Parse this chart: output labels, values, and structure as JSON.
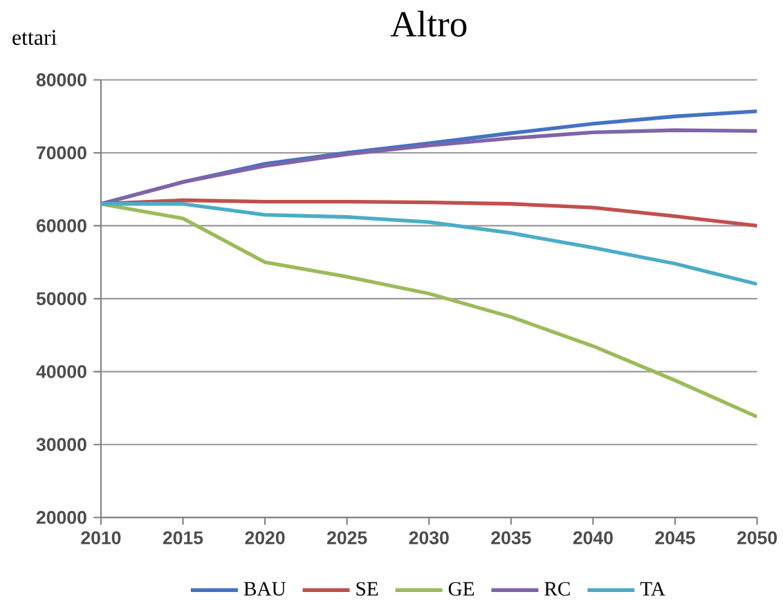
{
  "chart_data": {
    "type": "line",
    "title": "Altro",
    "ylabel": "ettari",
    "x": [
      2010,
      2015,
      2020,
      2025,
      2030,
      2035,
      2040,
      2045,
      2050
    ],
    "series": [
      {
        "name": "BAU",
        "color": "#4472c4",
        "values": [
          63000,
          66000,
          68500,
          70000,
          71300,
          72700,
          74000,
          75000,
          75700
        ]
      },
      {
        "name": "SE",
        "color": "#c0504d",
        "values": [
          63000,
          63500,
          63300,
          63300,
          63200,
          63000,
          62500,
          61300,
          60000
        ]
      },
      {
        "name": "GE",
        "color": "#9bbb59",
        "values": [
          63000,
          61000,
          55000,
          53000,
          50700,
          47500,
          43500,
          38800,
          33800
        ]
      },
      {
        "name": "RC",
        "color": "#7f64a8",
        "values": [
          63000,
          66000,
          68200,
          69800,
          71000,
          72000,
          72800,
          73100,
          73000
        ]
      },
      {
        "name": "TA",
        "color": "#4bacc6",
        "values": [
          63000,
          63000,
          61500,
          61200,
          60500,
          59000,
          57000,
          54800,
          52000
        ]
      }
    ],
    "xlim": [
      2010,
      2050
    ],
    "xticks": [
      2010,
      2015,
      2020,
      2025,
      2030,
      2035,
      2040,
      2045,
      2050
    ],
    "ylim": [
      20000,
      80000
    ],
    "yticks": [
      20000,
      30000,
      40000,
      50000,
      60000,
      70000,
      80000
    ],
    "grid": "y",
    "legend": "bottom",
    "marker": "none",
    "line_style": "solid"
  }
}
